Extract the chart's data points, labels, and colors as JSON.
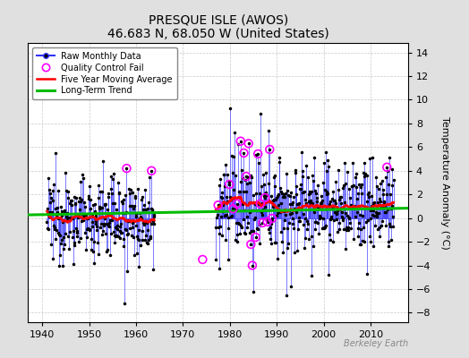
{
  "title": "PRESQUE ISLE (AWOS)",
  "subtitle": "46.683 N, 68.050 W (United States)",
  "ylabel": "Temperature Anomaly (°C)",
  "xlabel_years": [
    1940,
    1950,
    1960,
    1970,
    1980,
    1990,
    2000,
    2010
  ],
  "yticks": [
    -8,
    -6,
    -4,
    -2,
    0,
    2,
    4,
    6,
    8,
    10,
    12,
    14
  ],
  "xmin": 1937,
  "xmax": 2018,
  "ymin": -8.8,
  "ymax": 14.8,
  "watermark": "Berkeley Earth",
  "bar_color": "#3333FF",
  "trend_color": "#00BB00",
  "moving_avg_color": "#FF0000",
  "qc_color": "#FF00FF",
  "dot_color": "#000000",
  "bg_color": "#E0E0E0",
  "plot_bg": "#FFFFFF",
  "grid_color": "#BBBBBB",
  "seg1_start": 1941.0,
  "seg1_end": 1963.9,
  "seg2_start": 1977.0,
  "seg2_end": 2014.9,
  "trend_start": 1937.0,
  "trend_end": 2018.0
}
